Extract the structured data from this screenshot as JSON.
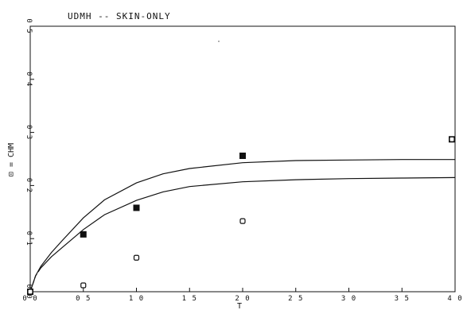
{
  "chart_data": {
    "type": "scatter",
    "title": "UDMH -- SKIN-ONLY",
    "xlabel": "T",
    "ylabel": "⊡ = CHM",
    "xlim": [
      0,
      4
    ],
    "ylim": [
      0,
      0.5
    ],
    "x_ticks": [
      "0 0",
      "0 5",
      "1 0",
      "1 5",
      "2 0",
      "2 5",
      "3 0",
      "3 5",
      "4 0"
    ],
    "y_ticks": [
      "0 0",
      "0 1",
      "0 2",
      "0 3",
      "0 4",
      "0 5"
    ],
    "x_tick_values": [
      0,
      0.5,
      1,
      1.5,
      2,
      2.5,
      3,
      3.5,
      4
    ],
    "y_tick_values": [
      0,
      0.1,
      0.2,
      0.3,
      0.4,
      0.5
    ],
    "grid": false,
    "series": [
      {
        "marker": "filled-square",
        "color": "#111111",
        "x": [
          0,
          0.5,
          1.0,
          2.0,
          4.0
        ],
        "y": [
          0.0,
          0.108,
          0.158,
          0.256,
          0.287
        ]
      },
      {
        "marker": "open-square",
        "color": "#111111",
        "x": [
          0,
          0.5,
          1.0,
          2.0,
          4.0
        ],
        "y": [
          0.0,
          0.012,
          0.064,
          0.133,
          0.287
        ]
      }
    ],
    "curves": [
      {
        "style": "solid",
        "color": "#111111",
        "x": [
          0,
          0.05,
          0.1,
          0.2,
          0.3,
          0.5,
          0.7,
          1.0,
          1.25,
          1.5,
          2.0,
          2.5,
          3.0,
          3.5,
          4.0
        ],
        "y": [
          0,
          0.03,
          0.048,
          0.074,
          0.096,
          0.139,
          0.173,
          0.205,
          0.222,
          0.232,
          0.243,
          0.247,
          0.248,
          0.249,
          0.249
        ]
      },
      {
        "style": "dashed-start",
        "color": "#111111",
        "x": [
          0,
          0.05,
          0.1,
          0.2,
          0.3,
          0.5,
          0.7,
          1.0,
          1.25,
          1.5,
          2.0,
          2.5,
          3.0,
          3.5,
          4.0
        ],
        "y": [
          0,
          0.03,
          0.045,
          0.066,
          0.083,
          0.117,
          0.145,
          0.172,
          0.188,
          0.198,
          0.207,
          0.211,
          0.213,
          0.214,
          0.215
        ]
      }
    ]
  }
}
